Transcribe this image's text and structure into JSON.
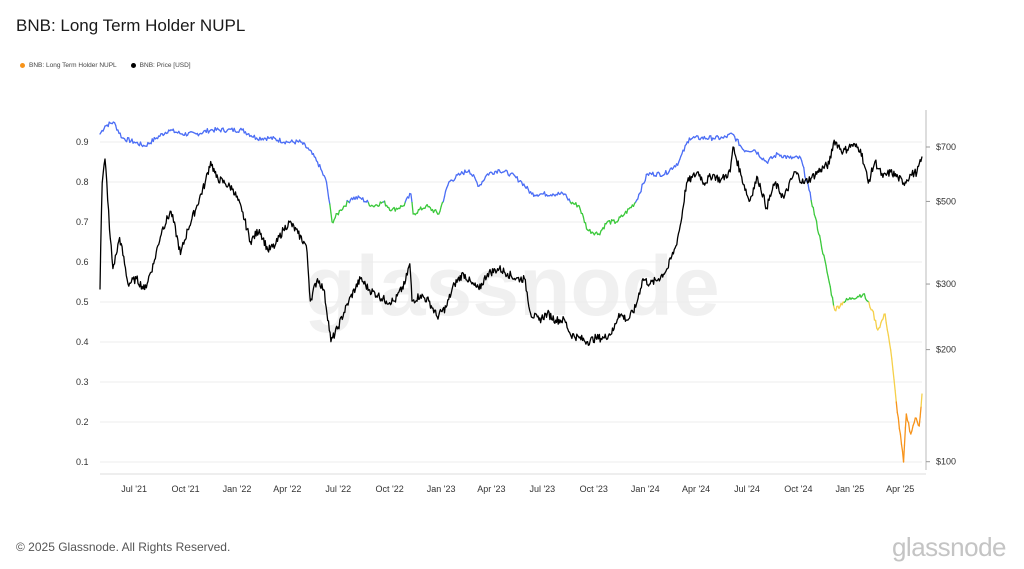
{
  "title": "BNB: Long Term Holder NUPL",
  "legend": [
    {
      "label": "BNB: Long Term Holder NUPL",
      "color": "#f7931a"
    },
    {
      "label": "BNB: Price [USD]",
      "color": "#000000"
    }
  ],
  "footer": "© 2025 Glassnode. All Rights Reserved.",
  "brand": "glassnode",
  "watermark": "glassnode",
  "chart_data": {
    "type": "line",
    "x_ticks": [
      "Jul '21",
      "Oct '21",
      "Jan '22",
      "Apr '22",
      "Jul '22",
      "Oct '22",
      "Jan '23",
      "Apr '23",
      "Jul '23",
      "Oct '23",
      "Jan '24",
      "Apr '24",
      "Jul '24",
      "Oct '24",
      "Jan '25",
      "Apr '25"
    ],
    "y_left": {
      "ticks": [
        "0.1",
        "0.2",
        "0.3",
        "0.4",
        "0.5",
        "0.6",
        "0.7",
        "0.8",
        "0.9"
      ],
      "range": [
        0.08,
        0.98
      ]
    },
    "y_right": {
      "scale": "log",
      "ticks": [
        "$100",
        "$200",
        "$300",
        "$500",
        "$700"
      ],
      "range": [
        95,
        880
      ]
    },
    "x_range": [
      "2021-05-01",
      "2025-05-10"
    ],
    "zone_colors": {
      "above_0.75": "#4c6ef5",
      "0.5_to_0.75": "#3cc93c",
      "0.25_to_0.5": "#f5d04a",
      "below_0.25": "#f7931a"
    },
    "series": [
      {
        "name": "BNB: Long Term Holder NUPL",
        "points": [
          [
            "2021-05-01",
            0.92
          ],
          [
            "2021-05-10",
            0.94
          ],
          [
            "2021-05-25",
            0.95
          ],
          [
            "2021-06-10",
            0.91
          ],
          [
            "2021-07-01",
            0.9
          ],
          [
            "2021-07-20",
            0.89
          ],
          [
            "2021-08-10",
            0.91
          ],
          [
            "2021-09-01",
            0.93
          ],
          [
            "2021-09-25",
            0.92
          ],
          [
            "2021-10-20",
            0.92
          ],
          [
            "2021-11-15",
            0.93
          ],
          [
            "2021-12-15",
            0.93
          ],
          [
            "2022-01-10",
            0.93
          ],
          [
            "2022-02-05",
            0.91
          ],
          [
            "2022-03-01",
            0.91
          ],
          [
            "2022-04-01",
            0.9
          ],
          [
            "2022-04-25",
            0.9
          ],
          [
            "2022-05-10",
            0.88
          ],
          [
            "2022-05-25",
            0.85
          ],
          [
            "2022-06-10",
            0.8
          ],
          [
            "2022-06-20",
            0.7
          ],
          [
            "2022-07-05",
            0.73
          ],
          [
            "2022-07-25",
            0.76
          ],
          [
            "2022-08-10",
            0.76
          ],
          [
            "2022-09-01",
            0.74
          ],
          [
            "2022-09-20",
            0.75
          ],
          [
            "2022-10-05",
            0.73
          ],
          [
            "2022-10-25",
            0.74
          ],
          [
            "2022-11-08",
            0.77
          ],
          [
            "2022-11-12",
            0.72
          ],
          [
            "2022-12-05",
            0.74
          ],
          [
            "2022-12-28",
            0.72
          ],
          [
            "2023-01-15",
            0.8
          ],
          [
            "2023-02-05",
            0.82
          ],
          [
            "2023-02-20",
            0.83
          ],
          [
            "2023-03-10",
            0.79
          ],
          [
            "2023-03-25",
            0.82
          ],
          [
            "2023-04-15",
            0.83
          ],
          [
            "2023-05-05",
            0.82
          ],
          [
            "2023-05-25",
            0.8
          ],
          [
            "2023-06-12",
            0.77
          ],
          [
            "2023-07-01",
            0.77
          ],
          [
            "2023-07-20",
            0.77
          ],
          [
            "2023-08-10",
            0.77
          ],
          [
            "2023-08-20",
            0.75
          ],
          [
            "2023-09-05",
            0.74
          ],
          [
            "2023-09-20",
            0.68
          ],
          [
            "2023-10-10",
            0.67
          ],
          [
            "2023-10-25",
            0.7
          ],
          [
            "2023-11-10",
            0.7
          ],
          [
            "2023-11-25",
            0.72
          ],
          [
            "2023-12-15",
            0.75
          ],
          [
            "2024-01-05",
            0.82
          ],
          [
            "2024-02-05",
            0.82
          ],
          [
            "2024-03-01",
            0.85
          ],
          [
            "2024-03-20",
            0.91
          ],
          [
            "2024-04-10",
            0.91
          ],
          [
            "2024-05-01",
            0.91
          ],
          [
            "2024-05-20",
            0.91
          ],
          [
            "2024-06-05",
            0.92
          ],
          [
            "2024-06-25",
            0.88
          ],
          [
            "2024-07-15",
            0.88
          ],
          [
            "2024-08-05",
            0.85
          ],
          [
            "2024-08-25",
            0.87
          ],
          [
            "2024-09-15",
            0.86
          ],
          [
            "2024-10-05",
            0.86
          ],
          [
            "2024-10-20",
            0.78
          ],
          [
            "2024-11-10",
            0.65
          ],
          [
            "2024-11-25",
            0.55
          ],
          [
            "2024-12-05",
            0.48
          ],
          [
            "2024-12-20",
            0.5
          ],
          [
            "2025-01-05",
            0.51
          ],
          [
            "2025-01-25",
            0.52
          ],
          [
            "2025-02-10",
            0.48
          ],
          [
            "2025-02-20",
            0.43
          ],
          [
            "2025-03-05",
            0.47
          ],
          [
            "2025-03-15",
            0.38
          ],
          [
            "2025-03-25",
            0.25
          ],
          [
            "2025-04-07",
            0.1
          ],
          [
            "2025-04-12",
            0.22
          ],
          [
            "2025-04-20",
            0.17
          ],
          [
            "2025-04-28",
            0.21
          ],
          [
            "2025-05-05",
            0.19
          ],
          [
            "2025-05-10",
            0.27
          ]
        ]
      },
      {
        "name": "BNB: Price [USD]",
        "points": [
          [
            "2021-05-01",
            290
          ],
          [
            "2021-05-05",
            560
          ],
          [
            "2021-05-10",
            650
          ],
          [
            "2021-05-18",
            420
          ],
          [
            "2021-05-24",
            330
          ],
          [
            "2021-05-30",
            360
          ],
          [
            "2021-06-05",
            400
          ],
          [
            "2021-06-20",
            300
          ],
          [
            "2021-07-05",
            310
          ],
          [
            "2021-07-20",
            290
          ],
          [
            "2021-08-05",
            340
          ],
          [
            "2021-08-20",
            420
          ],
          [
            "2021-09-05",
            470
          ],
          [
            "2021-09-22",
            360
          ],
          [
            "2021-10-05",
            420
          ],
          [
            "2021-10-20",
            480
          ],
          [
            "2021-11-05",
            560
          ],
          [
            "2021-11-15",
            640
          ],
          [
            "2021-11-25",
            580
          ],
          [
            "2021-12-10",
            560
          ],
          [
            "2021-12-25",
            540
          ],
          [
            "2022-01-10",
            470
          ],
          [
            "2022-01-25",
            390
          ],
          [
            "2022-02-10",
            420
          ],
          [
            "2022-02-25",
            370
          ],
          [
            "2022-03-10",
            380
          ],
          [
            "2022-03-25",
            420
          ],
          [
            "2022-04-05",
            440
          ],
          [
            "2022-04-20",
            410
          ],
          [
            "2022-05-05",
            380
          ],
          [
            "2022-05-12",
            270
          ],
          [
            "2022-05-25",
            310
          ],
          [
            "2022-06-05",
            290
          ],
          [
            "2022-06-18",
            210
          ],
          [
            "2022-07-01",
            230
          ],
          [
            "2022-07-20",
            270
          ],
          [
            "2022-08-10",
            310
          ],
          [
            "2022-08-25",
            290
          ],
          [
            "2022-09-10",
            280
          ],
          [
            "2022-09-25",
            270
          ],
          [
            "2022-10-10",
            270
          ],
          [
            "2022-10-28",
            300
          ],
          [
            "2022-11-06",
            340
          ],
          [
            "2022-11-10",
            270
          ],
          [
            "2022-11-25",
            280
          ],
          [
            "2022-12-10",
            270
          ],
          [
            "2022-12-25",
            245
          ],
          [
            "2023-01-10",
            260
          ],
          [
            "2023-01-25",
            300
          ],
          [
            "2023-02-10",
            320
          ],
          [
            "2023-02-25",
            300
          ],
          [
            "2023-03-10",
            290
          ],
          [
            "2023-03-25",
            320
          ],
          [
            "2023-04-15",
            330
          ],
          [
            "2023-04-30",
            320
          ],
          [
            "2023-05-15",
            310
          ],
          [
            "2023-05-30",
            310
          ],
          [
            "2023-06-10",
            250
          ],
          [
            "2023-06-25",
            240
          ],
          [
            "2023-07-10",
            250
          ],
          [
            "2023-07-25",
            240
          ],
          [
            "2023-08-10",
            240
          ],
          [
            "2023-08-20",
            220
          ],
          [
            "2023-09-05",
            215
          ],
          [
            "2023-09-20",
            210
          ],
          [
            "2023-10-05",
            215
          ],
          [
            "2023-10-20",
            215
          ],
          [
            "2023-11-05",
            225
          ],
          [
            "2023-11-15",
            250
          ],
          [
            "2023-12-01",
            240
          ],
          [
            "2023-12-15",
            260
          ],
          [
            "2023-12-28",
            310
          ],
          [
            "2024-01-10",
            300
          ],
          [
            "2024-01-25",
            310
          ],
          [
            "2024-02-10",
            330
          ],
          [
            "2024-02-25",
            380
          ],
          [
            "2024-03-05",
            440
          ],
          [
            "2024-03-15",
            560
          ],
          [
            "2024-03-25",
            580
          ],
          [
            "2024-04-05",
            600
          ],
          [
            "2024-04-15",
            560
          ],
          [
            "2024-05-01",
            590
          ],
          [
            "2024-05-15",
            570
          ],
          [
            "2024-06-01",
            600
          ],
          [
            "2024-06-06",
            700
          ],
          [
            "2024-06-20",
            590
          ],
          [
            "2024-07-05",
            500
          ],
          [
            "2024-07-20",
            580
          ],
          [
            "2024-08-05",
            480
          ],
          [
            "2024-08-20",
            560
          ],
          [
            "2024-09-05",
            510
          ],
          [
            "2024-09-25",
            600
          ],
          [
            "2024-10-10",
            560
          ],
          [
            "2024-10-25",
            580
          ],
          [
            "2024-11-10",
            610
          ],
          [
            "2024-11-25",
            630
          ],
          [
            "2024-12-04",
            730
          ],
          [
            "2024-12-20",
            680
          ],
          [
            "2025-01-05",
            710
          ],
          [
            "2025-01-20",
            690
          ],
          [
            "2025-02-03",
            560
          ],
          [
            "2025-02-15",
            640
          ],
          [
            "2025-03-01",
            580
          ],
          [
            "2025-03-15",
            600
          ],
          [
            "2025-03-28",
            580
          ],
          [
            "2025-04-07",
            560
          ],
          [
            "2025-04-20",
            590
          ],
          [
            "2025-05-01",
            600
          ],
          [
            "2025-05-08",
            640
          ],
          [
            "2025-05-10",
            660
          ]
        ]
      }
    ]
  }
}
